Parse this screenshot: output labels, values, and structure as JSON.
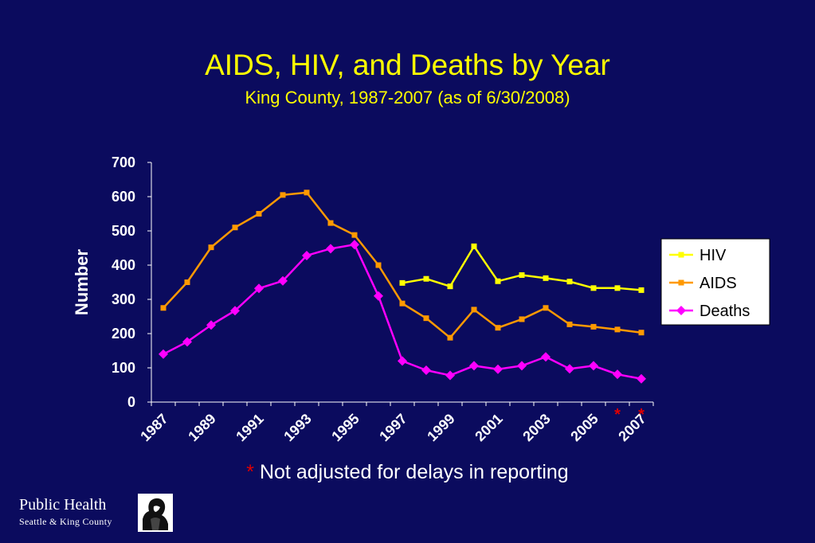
{
  "title": "AIDS, HIV, and Deaths by Year",
  "subtitle": "King County, 1987-2007 (as of 6/30/2008)",
  "footnote": {
    "star": "*",
    "text": " Not adjusted for delays in reporting"
  },
  "logo": {
    "name": "Public Health",
    "subtitle": "Seattle & King County",
    "icon": "portrait-logo-icon"
  },
  "colors": {
    "background": "#0b0b5e",
    "title": "#ffff00",
    "hiv": "#ffff00",
    "aids": "#ff9900",
    "deaths": "#ff00ff",
    "asterisk": "#e00000"
  },
  "chart_data": {
    "type": "line",
    "title": "",
    "xlabel": "",
    "ylabel": "Number",
    "ylim": [
      0,
      700
    ],
    "yticks": [
      0,
      100,
      200,
      300,
      400,
      500,
      600,
      700
    ],
    "x": [
      1987,
      1988,
      1989,
      1990,
      1991,
      1992,
      1993,
      1994,
      1995,
      1996,
      1997,
      1998,
      1999,
      2000,
      2001,
      2002,
      2003,
      2004,
      2005,
      2006,
      2007
    ],
    "xtick_labels": [
      "1987",
      "1989",
      "1991",
      "1993",
      "1995",
      "1997",
      "1999",
      "2001",
      "2003",
      "2005",
      "2007"
    ],
    "asterisk_years": [
      2006,
      2007
    ],
    "asterisk": "*",
    "legend_position": "right",
    "grid": false,
    "series": [
      {
        "name": "HIV",
        "color": "#ffff00",
        "marker": "square",
        "values": [
          null,
          null,
          null,
          null,
          null,
          null,
          null,
          null,
          null,
          null,
          348,
          360,
          338,
          455,
          353,
          371,
          362,
          352,
          333,
          333,
          327
        ]
      },
      {
        "name": "AIDS",
        "color": "#ff9900",
        "marker": "square",
        "values": [
          275,
          350,
          452,
          510,
          550,
          605,
          612,
          523,
          488,
          400,
          288,
          245,
          188,
          270,
          217,
          242,
          275,
          227,
          220,
          212,
          203
        ]
      },
      {
        "name": "Deaths",
        "color": "#ff00ff",
        "marker": "diamond",
        "values": [
          140,
          176,
          225,
          267,
          332,
          354,
          428,
          448,
          460,
          310,
          120,
          93,
          78,
          106,
          96,
          106,
          132,
          97,
          106,
          81,
          68
        ]
      }
    ]
  }
}
